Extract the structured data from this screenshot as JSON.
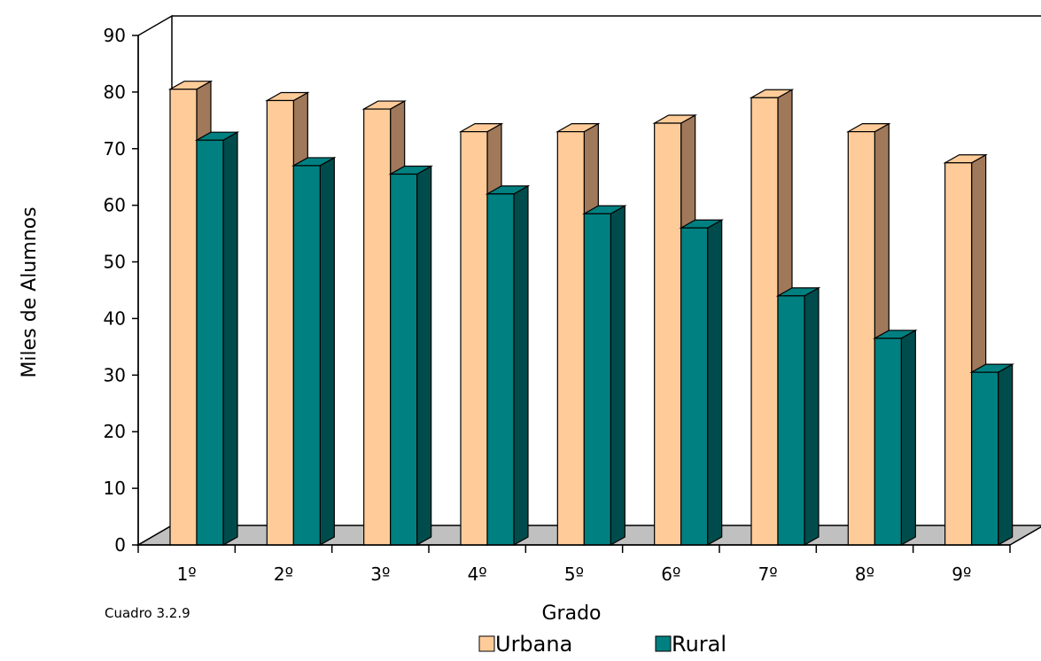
{
  "chart_data": {
    "type": "bar",
    "title": "",
    "caption": "Cuadro 3.2.9",
    "xlabel": "Grado",
    "ylabel": "Miles de Alumnos",
    "categories": [
      "1º",
      "2º",
      "3º",
      "4º",
      "5º",
      "6º",
      "7º",
      "8º",
      "9º"
    ],
    "series": [
      {
        "name": "Urbana",
        "values": [
          80.5,
          78.5,
          77,
          73,
          73,
          74.5,
          79,
          73,
          67.5
        ],
        "color": "#FFCC99",
        "side_color": "#A0785A"
      },
      {
        "name": "Rural",
        "values": [
          71.5,
          67,
          65.5,
          62,
          58.5,
          56,
          44,
          36.5,
          30.5
        ],
        "color": "#008080",
        "side_color": "#004C4C"
      }
    ],
    "ylim": [
      0,
      90
    ],
    "yticks": [
      0,
      10,
      20,
      30,
      40,
      50,
      60,
      70,
      80,
      90
    ],
    "grid": false,
    "legend_position": "bottom",
    "floor_color": "#C0C0C0"
  }
}
